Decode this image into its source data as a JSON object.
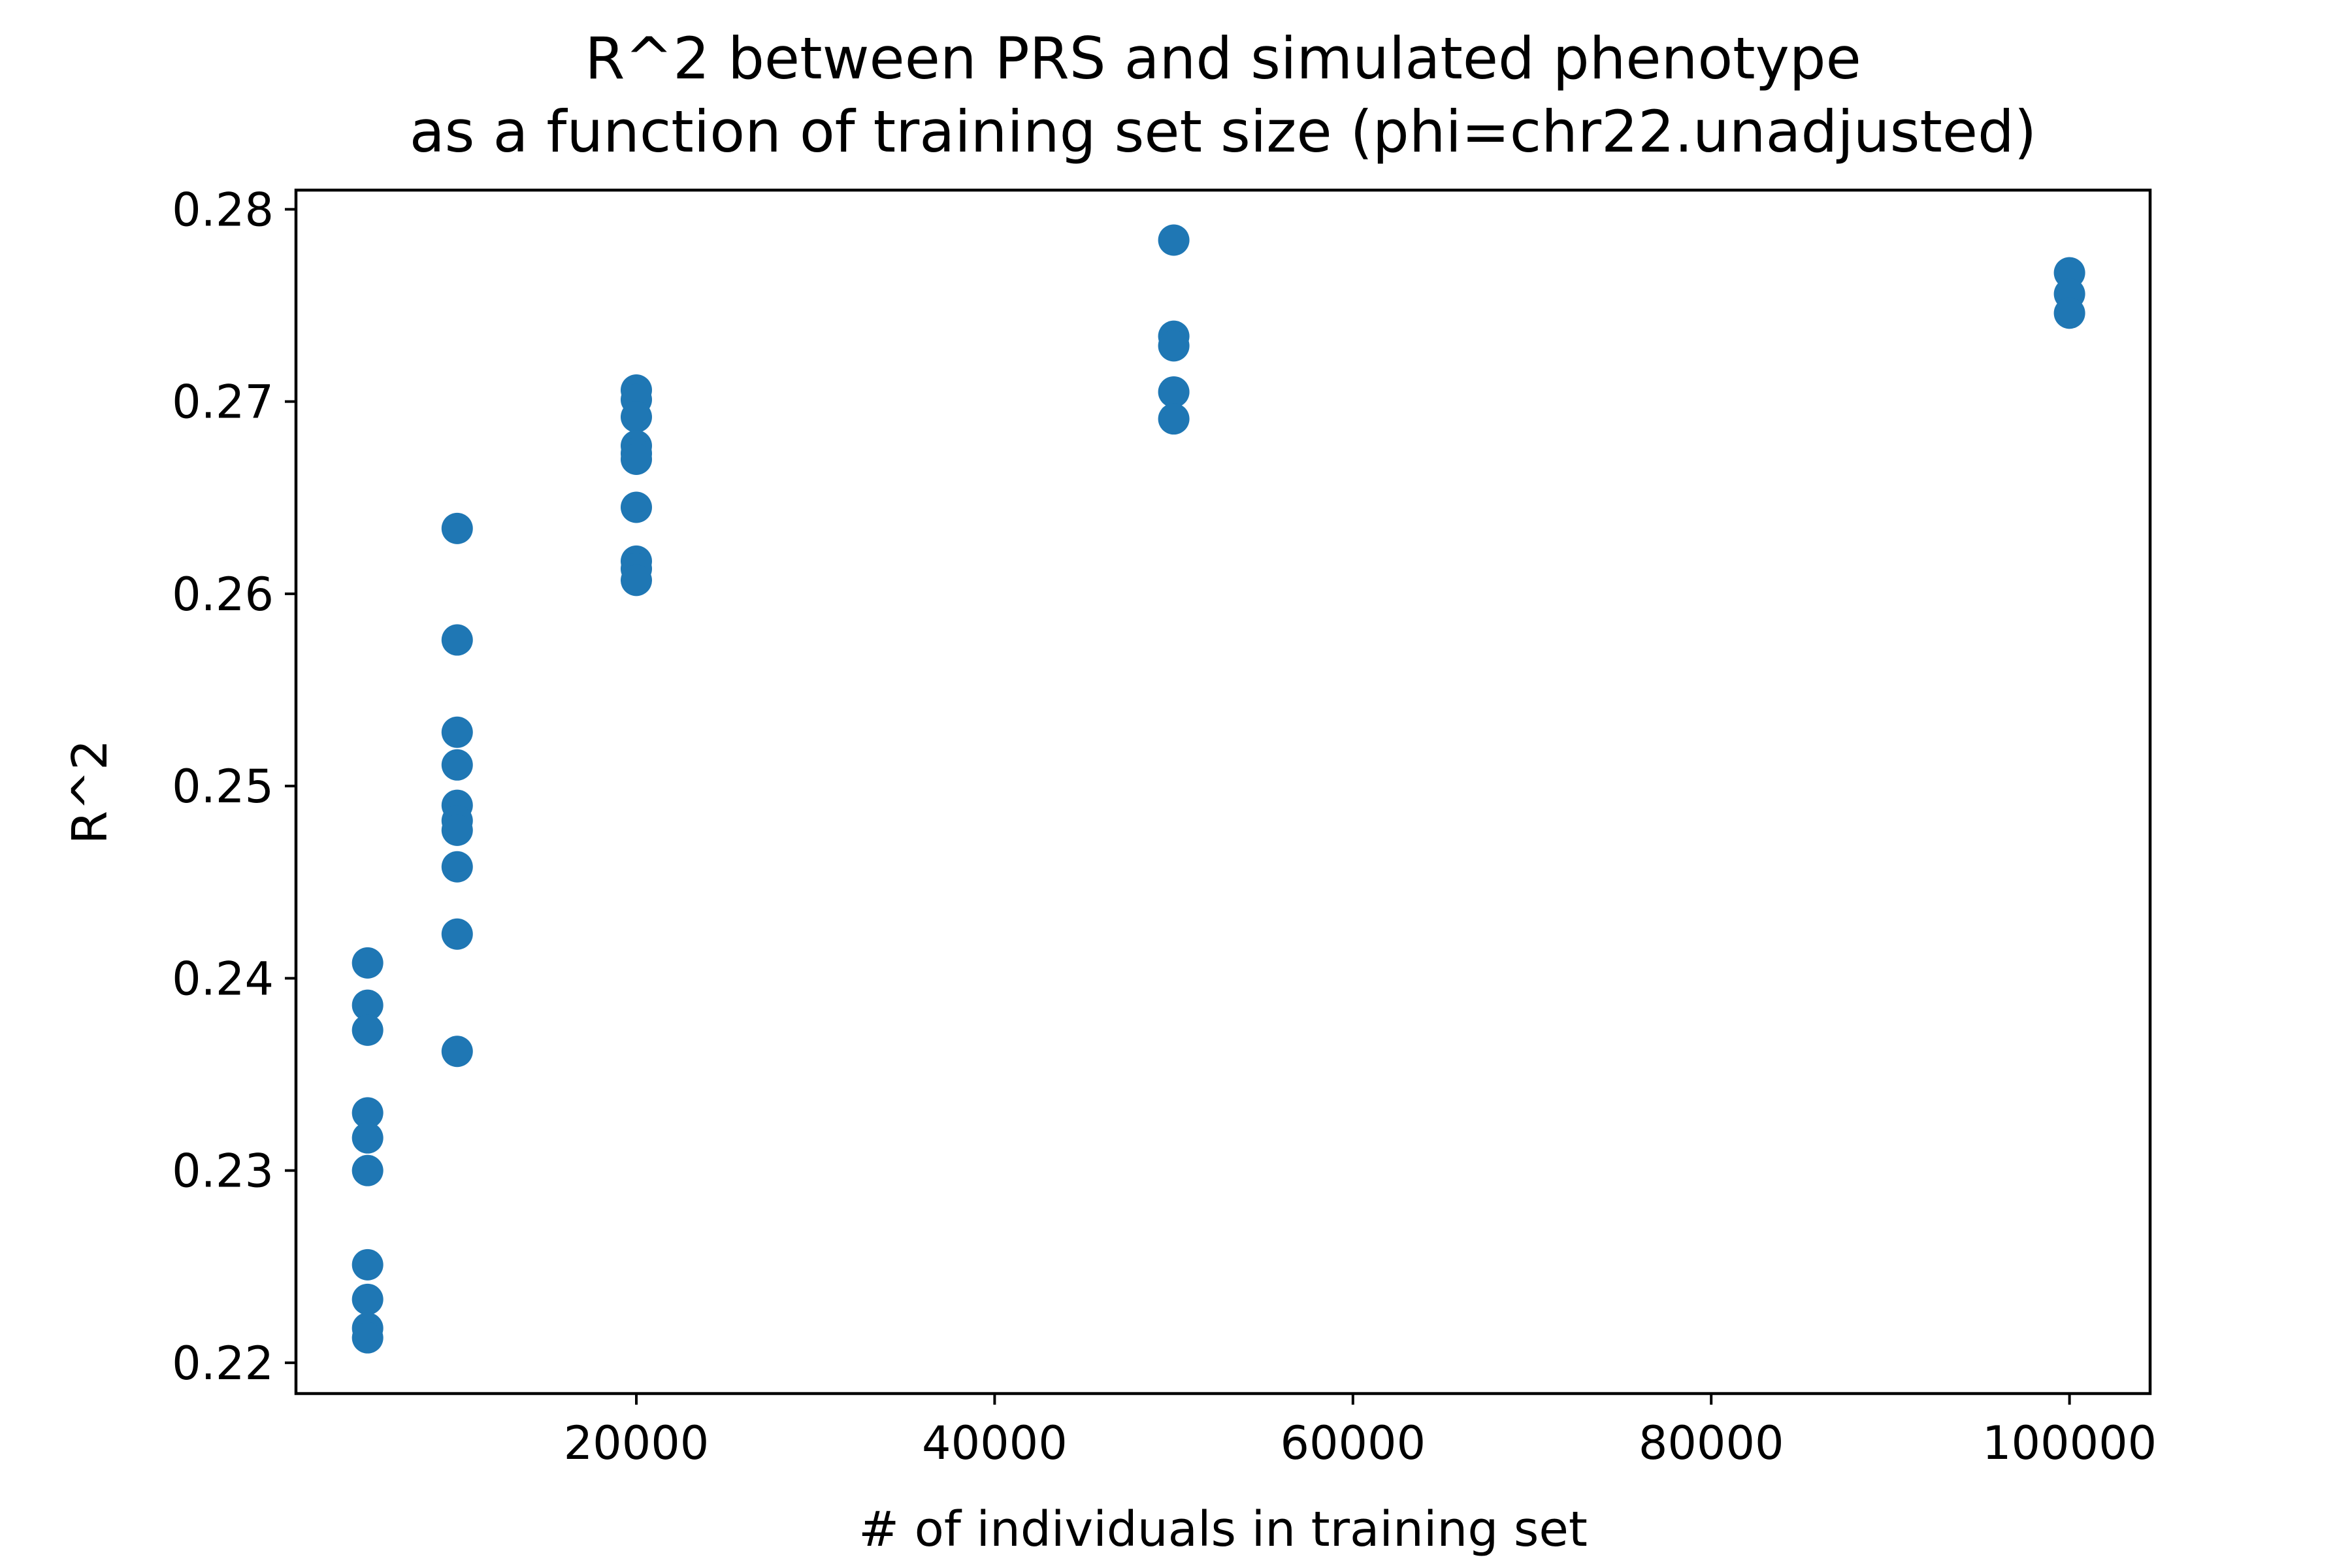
{
  "chart_data": {
    "type": "scatter",
    "title": "R^2 between PRS and simulated phenotype",
    "subtitle": "as a function of training set size (phi=chr22.unadjusted)",
    "xlabel": "# of individuals in training set",
    "ylabel": "R^2",
    "xlim": [
      1000,
      104500
    ],
    "ylim": [
      0.2184,
      0.281
    ],
    "xticks": [
      20000,
      40000,
      60000,
      80000,
      100000
    ],
    "xtick_labels": [
      "20000",
      "40000",
      "60000",
      "80000",
      "100000"
    ],
    "yticks": [
      0.22,
      0.23,
      0.24,
      0.25,
      0.26,
      0.27,
      0.28
    ],
    "ytick_labels": [
      "0.22",
      "0.23",
      "0.24",
      "0.25",
      "0.26",
      "0.27",
      "0.28"
    ],
    "grid": false,
    "series": [
      {
        "color": "#1f77b4",
        "points": [
          {
            "x": 5000,
            "y": 0.2408
          },
          {
            "x": 5000,
            "y": 0.2386
          },
          {
            "x": 5000,
            "y": 0.2373
          },
          {
            "x": 5000,
            "y": 0.233
          },
          {
            "x": 5000,
            "y": 0.2317
          },
          {
            "x": 5000,
            "y": 0.23
          },
          {
            "x": 5000,
            "y": 0.2251
          },
          {
            "x": 5000,
            "y": 0.2233
          },
          {
            "x": 5000,
            "y": 0.2218
          },
          {
            "x": 5000,
            "y": 0.2213
          },
          {
            "x": 10000,
            "y": 0.2634
          },
          {
            "x": 10000,
            "y": 0.2576
          },
          {
            "x": 10000,
            "y": 0.2528
          },
          {
            "x": 10000,
            "y": 0.2511
          },
          {
            "x": 10000,
            "y": 0.249
          },
          {
            "x": 10000,
            "y": 0.2482
          },
          {
            "x": 10000,
            "y": 0.2477
          },
          {
            "x": 10000,
            "y": 0.2458
          },
          {
            "x": 10000,
            "y": 0.2423
          },
          {
            "x": 10000,
            "y": 0.2362
          },
          {
            "x": 20000,
            "y": 0.2706
          },
          {
            "x": 20000,
            "y": 0.2701
          },
          {
            "x": 20000,
            "y": 0.2692
          },
          {
            "x": 20000,
            "y": 0.2677
          },
          {
            "x": 20000,
            "y": 0.2673
          },
          {
            "x": 20000,
            "y": 0.267
          },
          {
            "x": 20000,
            "y": 0.2645
          },
          {
            "x": 20000,
            "y": 0.2617
          },
          {
            "x": 20000,
            "y": 0.2613
          },
          {
            "x": 20000,
            "y": 0.2607
          },
          {
            "x": 50000,
            "y": 0.2784
          },
          {
            "x": 50000,
            "y": 0.2734
          },
          {
            "x": 50000,
            "y": 0.2729
          },
          {
            "x": 50000,
            "y": 0.2705
          },
          {
            "x": 50000,
            "y": 0.2691
          },
          {
            "x": 100000,
            "y": 0.2767
          },
          {
            "x": 100000,
            "y": 0.2756
          },
          {
            "x": 100000,
            "y": 0.2746
          }
        ]
      }
    ]
  }
}
